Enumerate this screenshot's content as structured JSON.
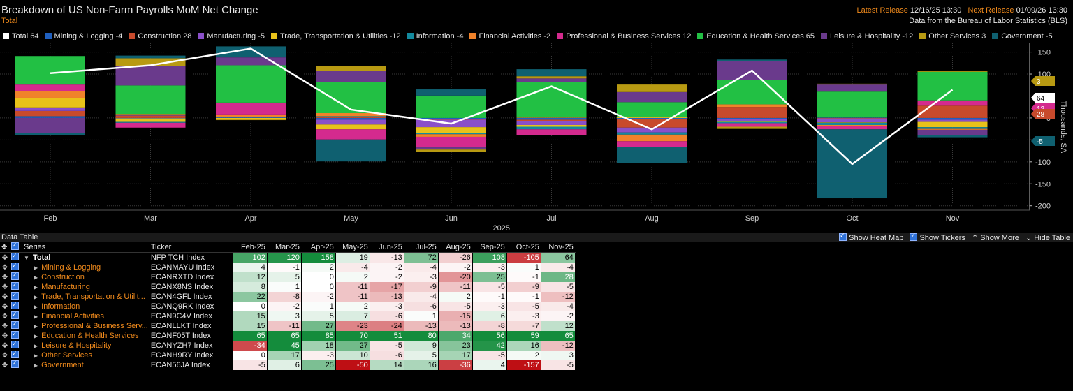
{
  "header": {
    "title": "Breakdown of US Non-Farm Payrolls MoM Net Change",
    "subtitle": "Total",
    "latest_release_label": "Latest Release",
    "latest_release_value": "12/16/25 13:30",
    "next_release_label": "Next Release",
    "next_release_value": "01/09/26 13:30",
    "source": "Data from the Bureau of Labor Statistics (BLS)"
  },
  "legend": [
    {
      "label": "Total 64",
      "color": "#ffffff"
    },
    {
      "label": "Mining & Logging -4",
      "color": "#1f5fbf"
    },
    {
      "label": "Construction 28",
      "color": "#c84a2c"
    },
    {
      "label": "Manufacturing -5",
      "color": "#8a4fc9"
    },
    {
      "label": "Trade, Transportation & Utilities -12",
      "color": "#e8c21a"
    },
    {
      "label": "Information -4",
      "color": "#138a9e"
    },
    {
      "label": "Financial Activities -2",
      "color": "#f0822a"
    },
    {
      "label": "Professional & Business Services 12",
      "color": "#d42a8e"
    },
    {
      "label": "Education & Health Services 65",
      "color": "#22c044"
    },
    {
      "label": "Leisure & Hospitality -12",
      "color": "#6a3a8c"
    },
    {
      "label": "Other Services 3",
      "color": "#b89a12"
    },
    {
      "label": "Government -5",
      "color": "#0f6070"
    }
  ],
  "chart_data": {
    "type": "bar",
    "stacked": true,
    "year_label": "2025",
    "categories": [
      "Feb",
      "Mar",
      "Apr",
      "May",
      "Jun",
      "Jul",
      "Aug",
      "Sep",
      "Oct",
      "Nov"
    ],
    "ylabel": "Thousands, SA",
    "ylim": [
      -210,
      170
    ],
    "yticks": [
      150,
      100,
      50,
      0,
      -50,
      -100,
      -150,
      -200
    ],
    "ytick_labels": [
      "150",
      "100",
      "50",
      "0",
      "-50",
      "-100",
      "-150",
      "-200"
    ],
    "line_series": {
      "name": "Total",
      "color": "#ffffff",
      "values": [
        102,
        120,
        158,
        19,
        -13,
        72,
        -26,
        108,
        -105,
        64
      ]
    },
    "series": [
      {
        "name": "Mining & Logging",
        "color": "#1f5fbf",
        "values": [
          4,
          -1,
          2,
          -4,
          -2,
          -4,
          -2,
          -3,
          1,
          -4
        ]
      },
      {
        "name": "Construction",
        "color": "#c84a2c",
        "values": [
          12,
          5,
          0,
          2,
          -2,
          -3,
          -20,
          25,
          -1,
          28
        ]
      },
      {
        "name": "Manufacturing",
        "color": "#8a4fc9",
        "values": [
          8,
          1,
          0,
          -11,
          -17,
          -9,
          -11,
          -5,
          -9,
          -5
        ]
      },
      {
        "name": "Trade, Transportation & Utilities",
        "color": "#e8c21a",
        "values": [
          22,
          -8,
          -2,
          -11,
          -13,
          -4,
          2,
          -1,
          -1,
          -12
        ]
      },
      {
        "name": "Information",
        "color": "#138a9e",
        "values": [
          0,
          -2,
          1,
          2,
          -3,
          -6,
          -5,
          -3,
          -5,
          -4
        ]
      },
      {
        "name": "Financial Activities",
        "color": "#f0822a",
        "values": [
          15,
          3,
          5,
          7,
          -6,
          1,
          -15,
          6,
          -3,
          -2
        ]
      },
      {
        "name": "Professional & Business Services",
        "color": "#d42a8e",
        "values": [
          15,
          -11,
          27,
          -23,
          -24,
          -13,
          -13,
          -8,
          -7,
          12
        ]
      },
      {
        "name": "Education & Health Services",
        "color": "#22c044",
        "values": [
          65,
          65,
          85,
          70,
          51,
          80,
          34,
          56,
          59,
          65
        ]
      },
      {
        "name": "Leisure & Hospitality",
        "color": "#6a3a8c",
        "values": [
          -34,
          45,
          18,
          27,
          -5,
          9,
          23,
          42,
          16,
          -12
        ]
      },
      {
        "name": "Other Services",
        "color": "#b89a12",
        "values": [
          0,
          17,
          -3,
          10,
          -6,
          5,
          17,
          -5,
          2,
          3
        ]
      },
      {
        "name": "Government",
        "color": "#0f6070",
        "values": [
          -5,
          6,
          25,
          -50,
          14,
          16,
          -36,
          4,
          -157,
          -5
        ]
      }
    ],
    "right_badges": [
      {
        "label": "3",
        "value": 3,
        "color": "#b89a12"
      },
      {
        "label": "64",
        "value": 64,
        "color": "#ffffff"
      },
      {
        "label": "12",
        "value": 12,
        "color": "#d42a8e"
      },
      {
        "label": "28",
        "value": 28,
        "color": "#c84a2c"
      },
      {
        "label": "-5",
        "value": -5,
        "color": "#0f6070"
      }
    ]
  },
  "table": {
    "title": "Data Table",
    "buttons": {
      "heatmap": "Show Heat Map",
      "tickers": "Show Tickers",
      "more": "Show More",
      "hide": "Hide Table"
    },
    "headers": {
      "series": "Series",
      "ticker": "Ticker",
      "months": [
        "Feb-25",
        "Mar-25",
        "Apr-25",
        "May-25",
        "Jun-25",
        "Jul-25",
        "Aug-25",
        "Sep-25",
        "Oct-25",
        "Nov-25"
      ]
    },
    "rows": [
      {
        "series": "Total",
        "ticker": "NFP TCH Index",
        "total": true,
        "values": [
          102,
          120,
          158,
          19,
          -13,
          72,
          -26,
          108,
          -105,
          64
        ]
      },
      {
        "series": "Mining & Logging",
        "ticker": "ECANMAYU Index",
        "values": [
          4,
          -1,
          2,
          -4,
          -2,
          -4,
          -2,
          -3,
          1,
          -4
        ]
      },
      {
        "series": "Construction",
        "ticker": "ECANRXTD Index",
        "values": [
          12,
          5,
          0,
          2,
          -2,
          -3,
          -20,
          25,
          -1,
          28
        ]
      },
      {
        "series": "Manufacturing",
        "ticker": "ECANX8NS Index",
        "values": [
          8,
          1,
          0,
          -11,
          -17,
          -9,
          -11,
          -5,
          -9,
          -5
        ]
      },
      {
        "series": "Trade, Transportation & Utilit...",
        "ticker": "ECAN4GFL Index",
        "values": [
          22,
          -8,
          -2,
          -11,
          -13,
          -4,
          2,
          -1,
          -1,
          -12
        ]
      },
      {
        "series": "Information",
        "ticker": "ECANQ9RK Index",
        "values": [
          0,
          -2,
          1,
          2,
          -3,
          -6,
          -5,
          -3,
          -5,
          -4
        ]
      },
      {
        "series": "Financial Activities",
        "ticker": "ECAN9C4V Index",
        "values": [
          15,
          3,
          5,
          7,
          -6,
          1,
          -15,
          6,
          -3,
          -2
        ]
      },
      {
        "series": "Professional & Business Serv...",
        "ticker": "ECANLLKT Index",
        "values": [
          15,
          -11,
          27,
          -23,
          -24,
          -13,
          -13,
          -8,
          -7,
          12
        ]
      },
      {
        "series": "Education & Health Services",
        "ticker": "ECANF05T Index",
        "values": [
          65,
          65,
          85,
          70,
          51,
          80,
          34,
          56,
          59,
          65
        ]
      },
      {
        "series": "Leisure & Hospitality",
        "ticker": "ECANYZH7 Index",
        "values": [
          -34,
          45,
          18,
          27,
          -5,
          9,
          23,
          42,
          16,
          -12
        ]
      },
      {
        "series": "Other Services",
        "ticker": "ECANH9RY Index",
        "values": [
          0,
          17,
          -3,
          10,
          -6,
          5,
          17,
          -5,
          2,
          3
        ]
      },
      {
        "series": "Government",
        "ticker": "ECAN56JA Index",
        "values": [
          -5,
          6,
          25,
          -50,
          14,
          16,
          -36,
          4,
          -157,
          -5
        ]
      }
    ]
  }
}
